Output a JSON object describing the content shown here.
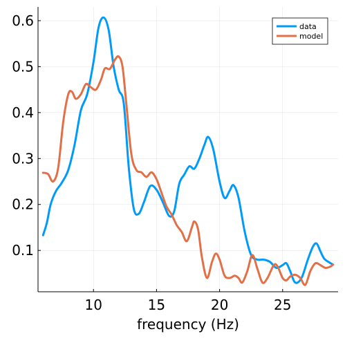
{
  "chart_data": {
    "type": "line",
    "title": "",
    "xlabel": "frequency (Hz)",
    "ylabel": "",
    "xlim": [
      5.6,
      29.4
    ],
    "ylim": [
      0.01,
      0.63
    ],
    "xticks": [
      10,
      15,
      20,
      25
    ],
    "yticks": [
      0.1,
      0.2,
      0.3,
      0.4,
      0.5,
      0.6
    ],
    "grid": true,
    "legend_position": "top-right",
    "series": [
      {
        "name": "data",
        "color": "#009af9",
        "points": [
          [
            6.0,
            0.133
          ],
          [
            6.3,
            0.16
          ],
          [
            6.6,
            0.2
          ],
          [
            7.0,
            0.228
          ],
          [
            7.5,
            0.248
          ],
          [
            8.0,
            0.275
          ],
          [
            8.5,
            0.33
          ],
          [
            9.0,
            0.405
          ],
          [
            9.5,
            0.44
          ],
          [
            10.0,
            0.51
          ],
          [
            10.4,
            0.585
          ],
          [
            10.8,
            0.607
          ],
          [
            11.2,
            0.58
          ],
          [
            11.6,
            0.5
          ],
          [
            12.0,
            0.45
          ],
          [
            12.4,
            0.42
          ],
          [
            12.8,
            0.28
          ],
          [
            13.2,
            0.19
          ],
          [
            13.6,
            0.18
          ],
          [
            14.0,
            0.205
          ],
          [
            14.5,
            0.24
          ],
          [
            15.0,
            0.232
          ],
          [
            15.5,
            0.205
          ],
          [
            16.0,
            0.175
          ],
          [
            16.4,
            0.185
          ],
          [
            16.8,
            0.245
          ],
          [
            17.2,
            0.265
          ],
          [
            17.6,
            0.283
          ],
          [
            18.0,
            0.278
          ],
          [
            18.4,
            0.3
          ],
          [
            18.8,
            0.33
          ],
          [
            19.1,
            0.347
          ],
          [
            19.5,
            0.32
          ],
          [
            20.0,
            0.25
          ],
          [
            20.4,
            0.214
          ],
          [
            20.8,
            0.23
          ],
          [
            21.1,
            0.242
          ],
          [
            21.5,
            0.215
          ],
          [
            22.0,
            0.14
          ],
          [
            22.5,
            0.09
          ],
          [
            23.0,
            0.08
          ],
          [
            23.5,
            0.08
          ],
          [
            24.0,
            0.075
          ],
          [
            24.5,
            0.062
          ],
          [
            25.0,
            0.068
          ],
          [
            25.3,
            0.072
          ],
          [
            25.6,
            0.055
          ],
          [
            26.0,
            0.03
          ],
          [
            26.5,
            0.04
          ],
          [
            27.0,
            0.08
          ],
          [
            27.4,
            0.108
          ],
          [
            27.7,
            0.115
          ],
          [
            28.0,
            0.098
          ],
          [
            28.3,
            0.082
          ],
          [
            28.7,
            0.074
          ],
          [
            29.0,
            0.069
          ]
        ]
      },
      {
        "name": "model",
        "color": "#e26f46",
        "points": [
          [
            6.0,
            0.269
          ],
          [
            6.4,
            0.266
          ],
          [
            6.8,
            0.25
          ],
          [
            7.2,
            0.28
          ],
          [
            7.6,
            0.38
          ],
          [
            8.0,
            0.44
          ],
          [
            8.3,
            0.445
          ],
          [
            8.6,
            0.43
          ],
          [
            9.0,
            0.44
          ],
          [
            9.4,
            0.462
          ],
          [
            9.8,
            0.455
          ],
          [
            10.2,
            0.45
          ],
          [
            10.6,
            0.472
          ],
          [
            10.9,
            0.496
          ],
          [
            11.3,
            0.495
          ],
          [
            11.7,
            0.515
          ],
          [
            12.0,
            0.522
          ],
          [
            12.3,
            0.5
          ],
          [
            12.6,
            0.42
          ],
          [
            13.0,
            0.31
          ],
          [
            13.4,
            0.275
          ],
          [
            13.8,
            0.27
          ],
          [
            14.2,
            0.26
          ],
          [
            14.6,
            0.27
          ],
          [
            15.0,
            0.255
          ],
          [
            15.4,
            0.225
          ],
          [
            15.8,
            0.195
          ],
          [
            16.2,
            0.178
          ],
          [
            16.6,
            0.155
          ],
          [
            17.0,
            0.14
          ],
          [
            17.4,
            0.12
          ],
          [
            17.8,
            0.15
          ],
          [
            18.0,
            0.163
          ],
          [
            18.3,
            0.145
          ],
          [
            18.6,
            0.085
          ],
          [
            19.0,
            0.04
          ],
          [
            19.4,
            0.075
          ],
          [
            19.7,
            0.093
          ],
          [
            20.0,
            0.08
          ],
          [
            20.4,
            0.045
          ],
          [
            20.8,
            0.04
          ],
          [
            21.2,
            0.045
          ],
          [
            21.5,
            0.04
          ],
          [
            21.8,
            0.03
          ],
          [
            22.2,
            0.055
          ],
          [
            22.6,
            0.09
          ],
          [
            23.0,
            0.06
          ],
          [
            23.4,
            0.03
          ],
          [
            23.8,
            0.04
          ],
          [
            24.3,
            0.068
          ],
          [
            24.6,
            0.065
          ],
          [
            25.0,
            0.04
          ],
          [
            25.3,
            0.035
          ],
          [
            25.6,
            0.043
          ],
          [
            26.0,
            0.047
          ],
          [
            26.4,
            0.04
          ],
          [
            26.8,
            0.025
          ],
          [
            27.2,
            0.055
          ],
          [
            27.6,
            0.072
          ],
          [
            28.0,
            0.068
          ],
          [
            28.4,
            0.062
          ],
          [
            28.8,
            0.065
          ],
          [
            29.0,
            0.069
          ]
        ]
      }
    ]
  }
}
